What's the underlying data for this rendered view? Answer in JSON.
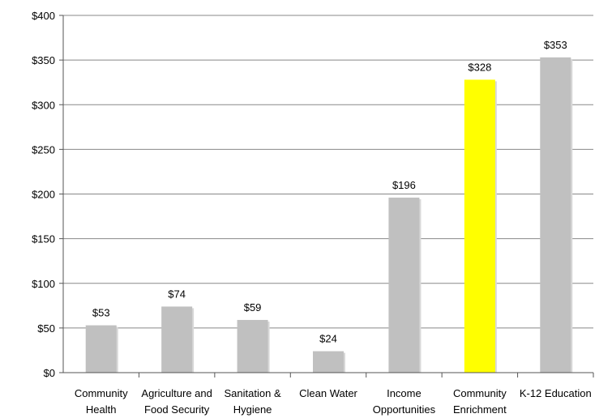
{
  "chart_data": {
    "type": "bar",
    "categories": [
      [
        "Community",
        "Health"
      ],
      [
        "Agriculture and",
        "Food Security"
      ],
      [
        "Sanitation &",
        "Hygiene"
      ],
      [
        "Clean Water"
      ],
      [
        "Income",
        "Opportunities"
      ],
      [
        "Community",
        "Enrichment"
      ],
      [
        "K-12 Education"
      ]
    ],
    "values": [
      53,
      74,
      59,
      24,
      196,
      328,
      353
    ],
    "data_labels": [
      "$53",
      "$74",
      "$59",
      "$24",
      "$196",
      "$328",
      "$353"
    ],
    "ylim": [
      0,
      400
    ],
    "yticks": [
      0,
      50,
      100,
      150,
      200,
      250,
      300,
      350,
      400
    ],
    "ytick_labels": [
      "$0",
      "$50",
      "$100",
      "$150",
      "$200",
      "$250",
      "$300",
      "$350",
      "$400"
    ],
    "grid": true,
    "colors": {
      "bar_default": "#c0c0c0",
      "bar_highlight": "#ffff00",
      "gridline": "#888888",
      "axis": "#555555"
    },
    "highlight_index": 5
  }
}
